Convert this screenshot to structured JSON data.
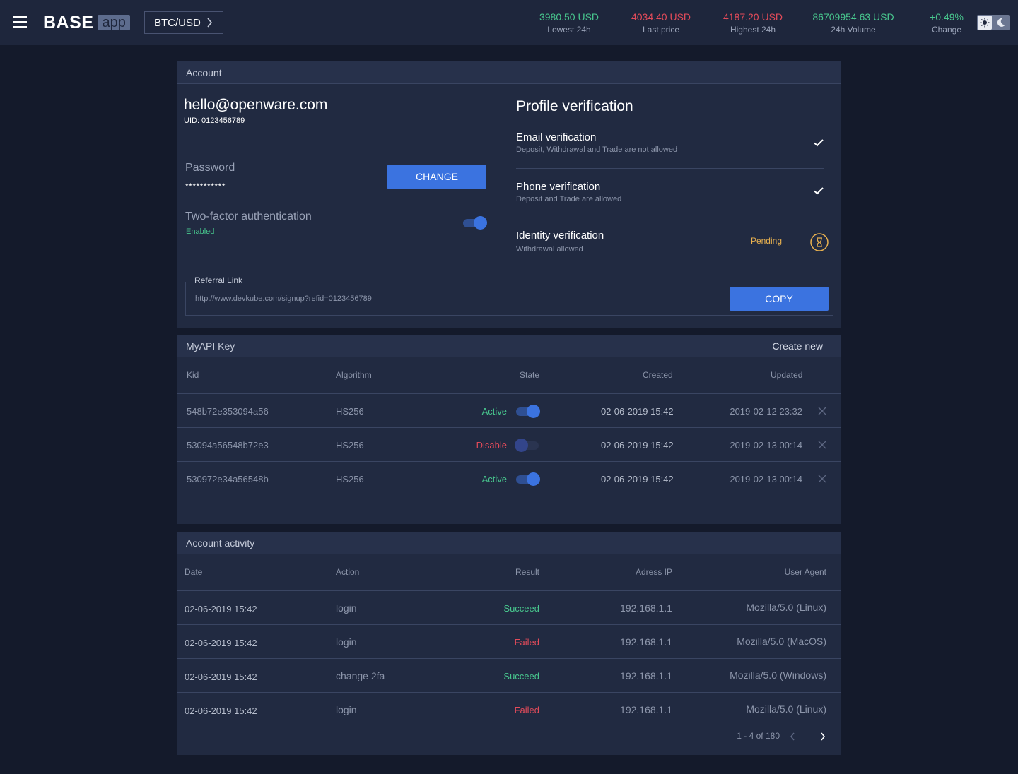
{
  "header": {
    "logo_main": "BASE",
    "logo_sub": "app",
    "market": "BTC/USD",
    "stats": [
      {
        "value": "3980.50 USD",
        "label": "Lowest 24h",
        "color": "#48c78e"
      },
      {
        "value": "4034.40 USD",
        "label": "Last price",
        "color": "#e34b5a"
      },
      {
        "value": "4187.20 USD",
        "label": "Highest 24h",
        "color": "#e34b5a"
      },
      {
        "value": "86709954.63 USD",
        "label": "24h Volume",
        "color": "#48c78e"
      },
      {
        "value": "+0.49%",
        "label": "Change",
        "color": "#48c78e"
      }
    ]
  },
  "account": {
    "title": "Account",
    "email": "hello@openware.com",
    "uid": "UID: 0123456789",
    "password_label": "Password",
    "password_value": "***********",
    "change_button": "CHANGE",
    "twofa_label": "Two-factor authentication",
    "twofa_status": "Enabled",
    "twofa_enabled": true,
    "profile_verification": {
      "title": "Profile verification",
      "items": [
        {
          "name": "Email verification",
          "desc": "Deposit, Withdrawal and Trade are not allowed",
          "status": "verified"
        },
        {
          "name": "Phone verification",
          "desc": "Deposit and Trade are allowed",
          "status": "verified"
        },
        {
          "name": "Identity verification",
          "desc": "Withdrawal allowed",
          "status": "Pending"
        }
      ]
    },
    "referral": {
      "label": "Referral Link",
      "link": "http://www.devkube.com/signup?refid=0123456789",
      "copy_button": "COPY"
    }
  },
  "api_keys": {
    "title": "MyAPI Key",
    "create_new": "Create new",
    "columns": [
      "Kid",
      "Algorithm",
      "State",
      "Created",
      "Updated"
    ],
    "rows": [
      {
        "kid": "548b72e353094a56",
        "algorithm": "HS256",
        "state": "Active",
        "enabled": true,
        "created": "02-06-2019 15:42",
        "updated": "2019-02-12 23:32"
      },
      {
        "kid": "53094a56548b72e3",
        "algorithm": "HS256",
        "state": "Disable",
        "enabled": false,
        "created": "02-06-2019 15:42",
        "updated": "2019-02-13 00:14"
      },
      {
        "kid": "530972e34a56548b",
        "algorithm": "HS256",
        "state": "Active",
        "enabled": true,
        "created": "02-06-2019 15:42",
        "updated": "2019-02-13 00:14"
      }
    ]
  },
  "activity": {
    "title": "Account activity",
    "columns": [
      "Date",
      "Action",
      "Result",
      "Adress IP",
      "User Agent"
    ],
    "rows": [
      {
        "date": "02-06-2019 15:42",
        "action": "login",
        "result": "Succeed",
        "ip": "192.168.1.1",
        "agent": "Mozilla/5.0 (Linux)"
      },
      {
        "date": "02-06-2019 15:42",
        "action": "login",
        "result": "Failed",
        "ip": "192.168.1.1",
        "agent": "Mozilla/5.0 (MacOS)"
      },
      {
        "date": "02-06-2019 15:42",
        "action": "change 2fa",
        "result": "Succeed",
        "ip": "192.168.1.1",
        "agent": "Mozilla/5.0 (Windows)"
      },
      {
        "date": "02-06-2019 15:42",
        "action": "login",
        "result": "Failed",
        "ip": "192.168.1.1",
        "agent": "Mozilla/5.0 (Linux)"
      }
    ],
    "pagination": "1 - 4 of 180"
  }
}
